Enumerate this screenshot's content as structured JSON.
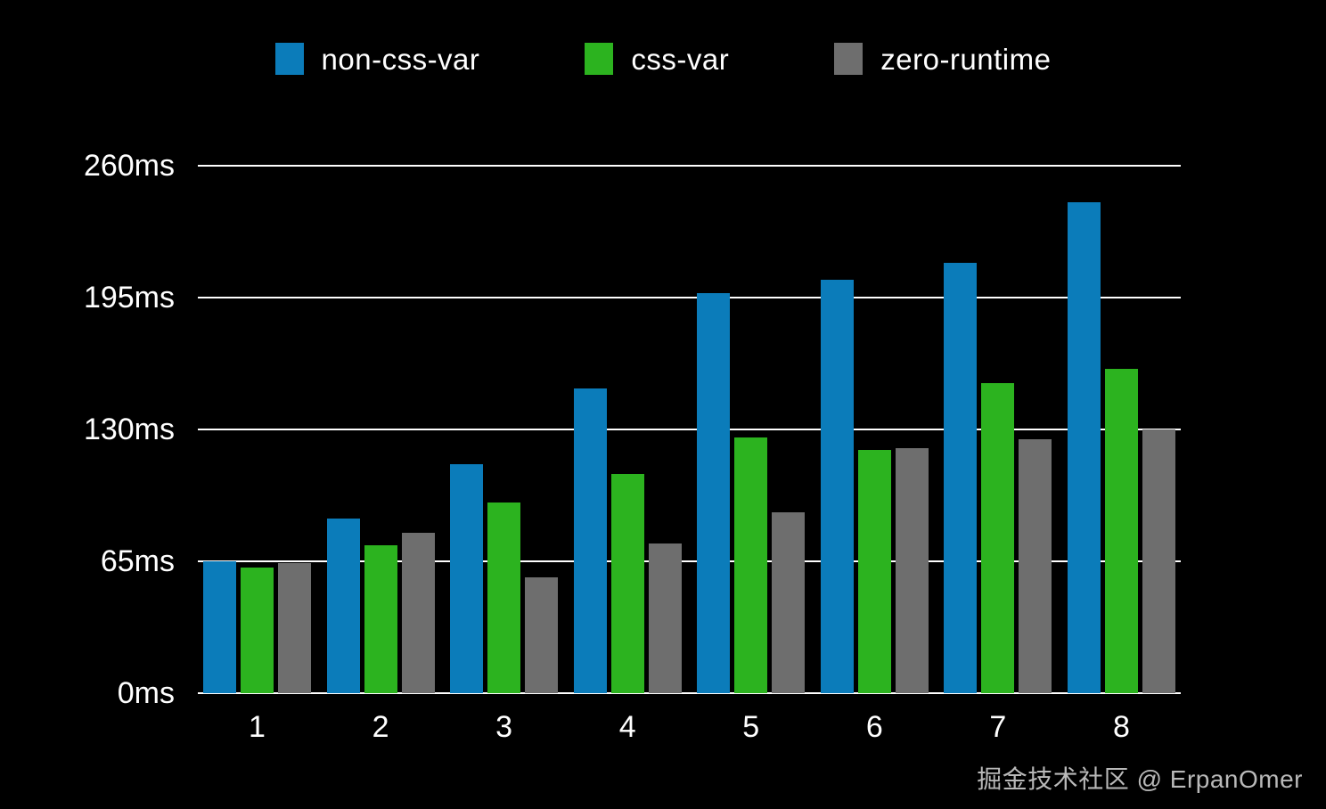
{
  "chart_data": {
    "type": "bar",
    "title": "",
    "categories": [
      "1",
      "2",
      "3",
      "4",
      "5",
      "6",
      "7",
      "8"
    ],
    "series": [
      {
        "name": "non-css-var",
        "color": "#0b7cba",
        "values": [
          65,
          86,
          113,
          150,
          197,
          204,
          212,
          242
        ]
      },
      {
        "name": "css-var",
        "color": "#2cb31f",
        "values": [
          62,
          73,
          94,
          108,
          126,
          120,
          153,
          160
        ]
      },
      {
        "name": "zero-runtime",
        "color": "#6e6e6e",
        "values": [
          64,
          79,
          57,
          74,
          89,
          121,
          125,
          130
        ]
      }
    ],
    "xlabel": "",
    "ylabel": "",
    "unit": "ms",
    "ylim": [
      0,
      260
    ],
    "y_ticks": [
      {
        "value": 260,
        "label": "260ms"
      },
      {
        "value": 195,
        "label": "195ms"
      },
      {
        "value": 130,
        "label": "130ms"
      },
      {
        "value": 65,
        "label": "65ms"
      },
      {
        "value": 0,
        "label": "0ms"
      }
    ],
    "grid": true,
    "legend_position": "top",
    "background_color": "#000000",
    "grid_color": "#ffffff",
    "text_color": "#ffffff"
  },
  "watermark": {
    "text": "掘金技术社区 @ ErpanOmer"
  }
}
